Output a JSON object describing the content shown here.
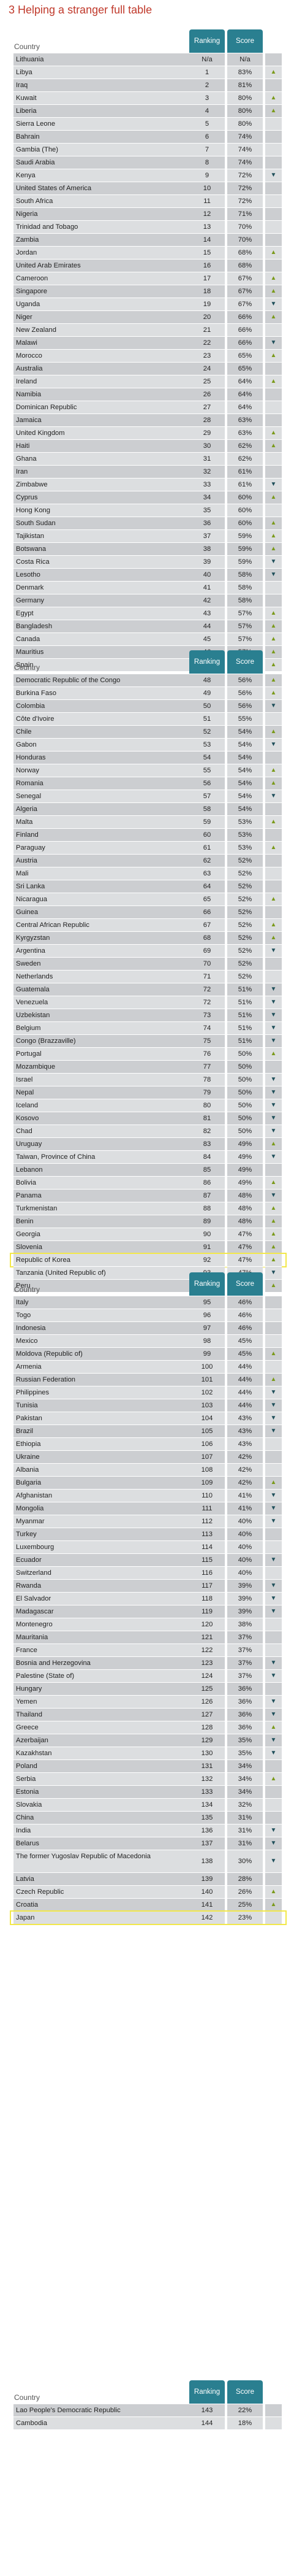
{
  "page": {
    "title": "3  Helping a stranger full table"
  },
  "headers": {
    "country": "Country",
    "ranking": "Ranking",
    "score": "Score"
  },
  "sections": [
    {
      "rows": [
        {
          "country": "Lithuania",
          "rank": "N/a",
          "score": "N/a",
          "trend": ""
        },
        {
          "country": "Libya",
          "rank": "1",
          "score": "83%",
          "trend": "up"
        },
        {
          "country": "Iraq",
          "rank": "2",
          "score": "81%",
          "trend": ""
        },
        {
          "country": "Kuwait",
          "rank": "3",
          "score": "80%",
          "trend": "up"
        },
        {
          "country": "Liberia",
          "rank": "4",
          "score": "80%",
          "trend": "up"
        },
        {
          "country": "Sierra Leone",
          "rank": "5",
          "score": "80%",
          "trend": ""
        },
        {
          "country": "Bahrain",
          "rank": "6",
          "score": "74%",
          "trend": ""
        },
        {
          "country": "Gambia (The)",
          "rank": "7",
          "score": "74%",
          "trend": ""
        },
        {
          "country": "Saudi Arabia",
          "rank": "8",
          "score": "74%",
          "trend": ""
        },
        {
          "country": "Kenya",
          "rank": "9",
          "score": "72%",
          "trend": "down"
        },
        {
          "country": "United States of America",
          "rank": "10",
          "score": "72%",
          "trend": ""
        },
        {
          "country": "South Africa",
          "rank": "11",
          "score": "72%",
          "trend": ""
        },
        {
          "country": "Nigeria",
          "rank": "12",
          "score": "71%",
          "trend": ""
        },
        {
          "country": "Trinidad and Tobago",
          "rank": "13",
          "score": "70%",
          "trend": ""
        },
        {
          "country": "Zambia",
          "rank": "14",
          "score": "70%",
          "trend": ""
        },
        {
          "country": "Jordan",
          "rank": "15",
          "score": "68%",
          "trend": "up"
        },
        {
          "country": "United Arab Emirates",
          "rank": "16",
          "score": "68%",
          "trend": ""
        },
        {
          "country": "Cameroon",
          "rank": "17",
          "score": "67%",
          "trend": "up"
        },
        {
          "country": "Singapore",
          "rank": "18",
          "score": "67%",
          "trend": "up"
        },
        {
          "country": "Uganda",
          "rank": "19",
          "score": "67%",
          "trend": "down"
        },
        {
          "country": "Niger",
          "rank": "20",
          "score": "66%",
          "trend": "up"
        },
        {
          "country": "New Zealand",
          "rank": "21",
          "score": "66%",
          "trend": ""
        },
        {
          "country": "Malawi",
          "rank": "22",
          "score": "66%",
          "trend": "down"
        },
        {
          "country": "Morocco",
          "rank": "23",
          "score": "65%",
          "trend": "up"
        },
        {
          "country": "Australia",
          "rank": "24",
          "score": "65%",
          "trend": ""
        },
        {
          "country": "Ireland",
          "rank": "25",
          "score": "64%",
          "trend": "up"
        },
        {
          "country": "Namibia",
          "rank": "26",
          "score": "64%",
          "trend": ""
        },
        {
          "country": "Dominican Republic",
          "rank": "27",
          "score": "64%",
          "trend": ""
        },
        {
          "country": "Jamaica",
          "rank": "28",
          "score": "63%",
          "trend": ""
        },
        {
          "country": "United Kingdom",
          "rank": "29",
          "score": "63%",
          "trend": "up"
        },
        {
          "country": "Haiti",
          "rank": "30",
          "score": "62%",
          "trend": "up"
        },
        {
          "country": "Ghana",
          "rank": "31",
          "score": "62%",
          "trend": ""
        },
        {
          "country": "Iran",
          "rank": "32",
          "score": "61%",
          "trend": ""
        },
        {
          "country": "Zimbabwe",
          "rank": "33",
          "score": "61%",
          "trend": "down"
        },
        {
          "country": "Cyprus",
          "rank": "34",
          "score": "60%",
          "trend": "up"
        },
        {
          "country": "Hong Kong",
          "rank": "35",
          "score": "60%",
          "trend": ""
        },
        {
          "country": "South Sudan",
          "rank": "36",
          "score": "60%",
          "trend": "up"
        },
        {
          "country": "Tajikistan",
          "rank": "37",
          "score": "59%",
          "trend": "up"
        },
        {
          "country": "Botswana",
          "rank": "38",
          "score": "59%",
          "trend": "up"
        },
        {
          "country": "Costa Rica",
          "rank": "39",
          "score": "59%",
          "trend": "down"
        },
        {
          "country": "Lesotho",
          "rank": "40",
          "score": "58%",
          "trend": "down"
        },
        {
          "country": "Denmark",
          "rank": "41",
          "score": "58%",
          "trend": ""
        },
        {
          "country": "Germany",
          "rank": "42",
          "score": "58%",
          "trend": ""
        },
        {
          "country": "Egypt",
          "rank": "43",
          "score": "57%",
          "trend": "up"
        },
        {
          "country": "Bangladesh",
          "rank": "44",
          "score": "57%",
          "trend": "up"
        },
        {
          "country": "Canada",
          "rank": "45",
          "score": "57%",
          "trend": "up"
        },
        {
          "country": "Mauritius",
          "rank": "46",
          "score": "57%",
          "trend": "up"
        },
        {
          "country": "Spain",
          "rank": "47",
          "score": "56%",
          "trend": "up"
        }
      ]
    },
    {
      "rows": [
        {
          "country": "Democratic Republic of the Congo",
          "rank": "48",
          "score": "56%",
          "trend": "up"
        },
        {
          "country": "Burkina Faso",
          "rank": "49",
          "score": "56%",
          "trend": "up"
        },
        {
          "country": "Colombia",
          "rank": "50",
          "score": "56%",
          "trend": "down"
        },
        {
          "country": "Côte d'Ivoire",
          "rank": "51",
          "score": "55%",
          "trend": ""
        },
        {
          "country": "Chile",
          "rank": "52",
          "score": "54%",
          "trend": "up"
        },
        {
          "country": "Gabon",
          "rank": "53",
          "score": "54%",
          "trend": "down"
        },
        {
          "country": "Honduras",
          "rank": "54",
          "score": "54%",
          "trend": ""
        },
        {
          "country": "Norway",
          "rank": "55",
          "score": "54%",
          "trend": "up"
        },
        {
          "country": "Romania",
          "rank": "56",
          "score": "54%",
          "trend": "up"
        },
        {
          "country": "Senegal",
          "rank": "57",
          "score": "54%",
          "trend": "down"
        },
        {
          "country": "Algeria",
          "rank": "58",
          "score": "54%",
          "trend": ""
        },
        {
          "country": "Malta",
          "rank": "59",
          "score": "53%",
          "trend": "up"
        },
        {
          "country": "Finland",
          "rank": "60",
          "score": "53%",
          "trend": ""
        },
        {
          "country": "Paraguay",
          "rank": "61",
          "score": "53%",
          "trend": "up"
        },
        {
          "country": "Austria",
          "rank": "62",
          "score": "52%",
          "trend": ""
        },
        {
          "country": "Mali",
          "rank": "63",
          "score": "52%",
          "trend": ""
        },
        {
          "country": "Sri Lanka",
          "rank": "64",
          "score": "52%",
          "trend": ""
        },
        {
          "country": "Nicaragua",
          "rank": "65",
          "score": "52%",
          "trend": "up"
        },
        {
          "country": "Guinea",
          "rank": "66",
          "score": "52%",
          "trend": ""
        },
        {
          "country": "Central African Republic",
          "rank": "67",
          "score": "52%",
          "trend": "up"
        },
        {
          "country": "Kyrgyzstan",
          "rank": "68",
          "score": "52%",
          "trend": "up"
        },
        {
          "country": "Argentina",
          "rank": "69",
          "score": "52%",
          "trend": "down"
        },
        {
          "country": "Sweden",
          "rank": "70",
          "score": "52%",
          "trend": ""
        },
        {
          "country": "Netherlands",
          "rank": "71",
          "score": "52%",
          "trend": ""
        },
        {
          "country": "Guatemala",
          "rank": "72",
          "score": "51%",
          "trend": "down"
        },
        {
          "country": "Venezuela",
          "rank": "72",
          "score": "51%",
          "trend": "down"
        },
        {
          "country": "Uzbekistan",
          "rank": "73",
          "score": "51%",
          "trend": "down"
        },
        {
          "country": "Belgium",
          "rank": "74",
          "score": "51%",
          "trend": "down"
        },
        {
          "country": "Congo (Brazzaville)",
          "rank": "75",
          "score": "51%",
          "trend": "down"
        },
        {
          "country": "Portugal",
          "rank": "76",
          "score": "50%",
          "trend": "up"
        },
        {
          "country": "Mozambique",
          "rank": "77",
          "score": "50%",
          "trend": ""
        },
        {
          "country": "Israel",
          "rank": "78",
          "score": "50%",
          "trend": "down"
        },
        {
          "country": "Nepal",
          "rank": "79",
          "score": "50%",
          "trend": "down"
        },
        {
          "country": "Iceland",
          "rank": "80",
          "score": "50%",
          "trend": "down"
        },
        {
          "country": "Kosovo",
          "rank": "81",
          "score": "50%",
          "trend": "down"
        },
        {
          "country": "Chad",
          "rank": "82",
          "score": "50%",
          "trend": "down"
        },
        {
          "country": "Uruguay",
          "rank": "83",
          "score": "49%",
          "trend": "up"
        },
        {
          "country": "Taiwan, Province of China",
          "rank": "84",
          "score": "49%",
          "trend": "down"
        },
        {
          "country": "Lebanon",
          "rank": "85",
          "score": "49%",
          "trend": ""
        },
        {
          "country": "Bolivia",
          "rank": "86",
          "score": "49%",
          "trend": "up"
        },
        {
          "country": "Panama",
          "rank": "87",
          "score": "48%",
          "trend": "down"
        },
        {
          "country": "Turkmenistan",
          "rank": "88",
          "score": "48%",
          "trend": "up"
        },
        {
          "country": "Benin",
          "rank": "89",
          "score": "48%",
          "trend": "up"
        },
        {
          "country": "Georgia",
          "rank": "90",
          "score": "47%",
          "trend": "up"
        },
        {
          "country": "Slovenia",
          "rank": "91",
          "score": "47%",
          "trend": "up"
        },
        {
          "country": "Republic of Korea",
          "rank": "92",
          "score": "47%",
          "trend": "up",
          "highlight": true
        },
        {
          "country": "Tanzania (United Republic of)",
          "rank": "93",
          "score": "47%",
          "trend": "down"
        },
        {
          "country": "Peru",
          "rank": "94",
          "score": "47%",
          "trend": "up"
        }
      ]
    },
    {
      "rows": [
        {
          "country": "Italy",
          "rank": "95",
          "score": "46%",
          "trend": ""
        },
        {
          "country": "Togo",
          "rank": "96",
          "score": "46%",
          "trend": ""
        },
        {
          "country": "Indonesia",
          "rank": "97",
          "score": "46%",
          "trend": ""
        },
        {
          "country": "Mexico",
          "rank": "98",
          "score": "45%",
          "trend": ""
        },
        {
          "country": "Moldova (Republic of)",
          "rank": "99",
          "score": "45%",
          "trend": "up"
        },
        {
          "country": "Armenia",
          "rank": "100",
          "score": "44%",
          "trend": ""
        },
        {
          "country": "Russian Federation",
          "rank": "101",
          "score": "44%",
          "trend": "up"
        },
        {
          "country": "Philippines",
          "rank": "102",
          "score": "44%",
          "trend": "down"
        },
        {
          "country": "Tunisia",
          "rank": "103",
          "score": "44%",
          "trend": "down"
        },
        {
          "country": "Pakistan",
          "rank": "104",
          "score": "43%",
          "trend": "down"
        },
        {
          "country": "Brazil",
          "rank": "105",
          "score": "43%",
          "trend": "down"
        },
        {
          "country": "Ethiopia",
          "rank": "106",
          "score": "43%",
          "trend": ""
        },
        {
          "country": "Ukraine",
          "rank": "107",
          "score": "42%",
          "trend": ""
        },
        {
          "country": "Albania",
          "rank": "108",
          "score": "42%",
          "trend": ""
        },
        {
          "country": "Bulgaria",
          "rank": "109",
          "score": "42%",
          "trend": "up"
        },
        {
          "country": "Afghanistan",
          "rank": "110",
          "score": "41%",
          "trend": "down"
        },
        {
          "country": "Mongolia",
          "rank": "111",
          "score": "41%",
          "trend": "down"
        },
        {
          "country": "Myanmar",
          "rank": "112",
          "score": "40%",
          "trend": "down"
        },
        {
          "country": "Turkey",
          "rank": "113",
          "score": "40%",
          "trend": ""
        },
        {
          "country": "Luxembourg",
          "rank": "114",
          "score": "40%",
          "trend": ""
        },
        {
          "country": "Ecuador",
          "rank": "115",
          "score": "40%",
          "trend": "down"
        },
        {
          "country": "Switzerland",
          "rank": "116",
          "score": "40%",
          "trend": ""
        },
        {
          "country": "Rwanda",
          "rank": "117",
          "score": "39%",
          "trend": "down"
        },
        {
          "country": "El Salvador",
          "rank": "118",
          "score": "39%",
          "trend": "down"
        },
        {
          "country": "Madagascar",
          "rank": "119",
          "score": "39%",
          "trend": "down"
        },
        {
          "country": "Montenegro",
          "rank": "120",
          "score": "38%",
          "trend": ""
        },
        {
          "country": "Mauritania",
          "rank": "121",
          "score": "37%",
          "trend": ""
        },
        {
          "country": "France",
          "rank": "122",
          "score": "37%",
          "trend": ""
        },
        {
          "country": "Bosnia and Herzegovina",
          "rank": "123",
          "score": "37%",
          "trend": "down"
        },
        {
          "country": "Palestine (State of)",
          "rank": "124",
          "score": "37%",
          "trend": "down"
        },
        {
          "country": "Hungary",
          "rank": "125",
          "score": "36%",
          "trend": ""
        },
        {
          "country": "Yemen",
          "rank": "126",
          "score": "36%",
          "trend": "down"
        },
        {
          "country": "Thailand",
          "rank": "127",
          "score": "36%",
          "trend": "down"
        },
        {
          "country": "Greece",
          "rank": "128",
          "score": "36%",
          "trend": "up"
        },
        {
          "country": "Azerbaijan",
          "rank": "129",
          "score": "35%",
          "trend": "down"
        },
        {
          "country": "Kazakhstan",
          "rank": "130",
          "score": "35%",
          "trend": "down"
        },
        {
          "country": "Poland",
          "rank": "131",
          "score": "34%",
          "trend": ""
        },
        {
          "country": "Serbia",
          "rank": "132",
          "score": "34%",
          "trend": "up"
        },
        {
          "country": "Estonia",
          "rank": "133",
          "score": "34%",
          "trend": ""
        },
        {
          "country": "Slovakia",
          "rank": "134",
          "score": "32%",
          "trend": ""
        },
        {
          "country": "China",
          "rank": "135",
          "score": "31%",
          "trend": ""
        },
        {
          "country": "India",
          "rank": "136",
          "score": "31%",
          "trend": "down"
        },
        {
          "country": "Belarus",
          "rank": "137",
          "score": "31%",
          "trend": "down"
        },
        {
          "country": "The former Yugoslav Republic of Macedonia",
          "rank": "138",
          "score": "30%",
          "trend": "down",
          "tall": true
        },
        {
          "country": "Latvia",
          "rank": "139",
          "score": "28%",
          "trend": ""
        },
        {
          "country": "Czech Republic",
          "rank": "140",
          "score": "26%",
          "trend": "up"
        },
        {
          "country": "Croatia",
          "rank": "141",
          "score": "25%",
          "trend": "up"
        },
        {
          "country": "Japan",
          "rank": "142",
          "score": "23%",
          "trend": "",
          "highlight": true
        }
      ]
    },
    {
      "rows": [
        {
          "country": "Lao People's Democratic Republic",
          "rank": "143",
          "score": "22%",
          "trend": ""
        },
        {
          "country": "Cambodia",
          "rank": "144",
          "score": "18%",
          "trend": ""
        }
      ]
    }
  ]
}
